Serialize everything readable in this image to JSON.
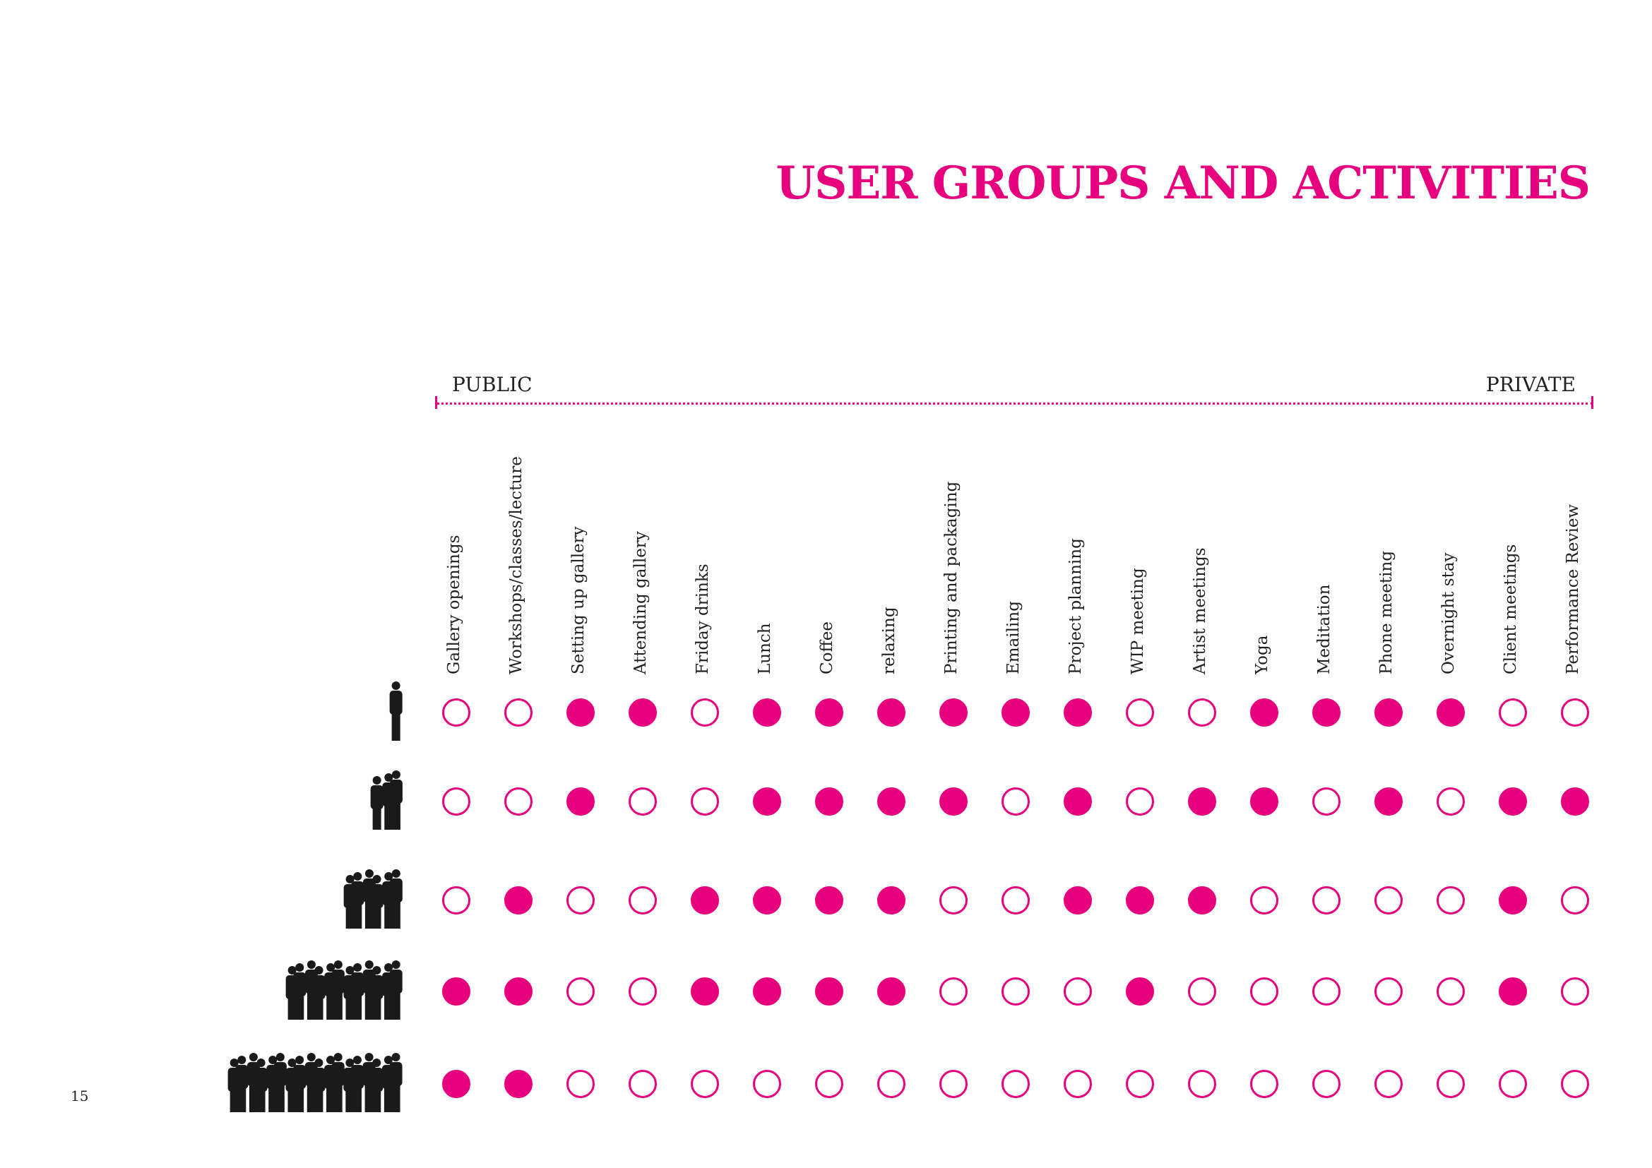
{
  "title": "USER GROUPS AND ACTIVITIES",
  "scale": {
    "left_label": "PUBLIC",
    "right_label": "PRIVATE"
  },
  "page_number": "15",
  "colors": {
    "accent": "#e6007e",
    "silhouette": "#1a1a1a"
  },
  "activities": [
    "Gallery openings",
    "Workshops/classes/lecture",
    "Setting up gallery",
    "Attending gallery",
    "Friday drinks",
    "Lunch",
    "Coffee",
    "relaxing",
    "Printing and packaging",
    "Emailing",
    "Project planning",
    "WIP meeting",
    "Artist meetings",
    "Yoga",
    "Meditation",
    "Phone meeting",
    "Overnight stay",
    "Client meetings",
    "Performance Review"
  ],
  "user_groups": [
    {
      "people_icon_count": 1,
      "activities": [
        0,
        0,
        1,
        1,
        0,
        1,
        1,
        1,
        1,
        1,
        1,
        0,
        0,
        1,
        1,
        1,
        1,
        0,
        0
      ]
    },
    {
      "people_icon_count": 3,
      "activities": [
        0,
        0,
        1,
        0,
        0,
        1,
        1,
        1,
        1,
        0,
        1,
        0,
        1,
        1,
        0,
        1,
        0,
        1,
        1
      ]
    },
    {
      "people_icon_count": 6,
      "activities": [
        0,
        1,
        0,
        0,
        1,
        1,
        1,
        1,
        0,
        0,
        1,
        1,
        1,
        0,
        0,
        0,
        0,
        1,
        0
      ]
    },
    {
      "people_icon_count": 12,
      "activities": [
        1,
        1,
        0,
        0,
        1,
        1,
        1,
        1,
        0,
        0,
        0,
        1,
        0,
        0,
        0,
        0,
        0,
        1,
        0
      ]
    },
    {
      "people_icon_count": 18,
      "activities": [
        1,
        1,
        0,
        0,
        0,
        0,
        0,
        0,
        0,
        0,
        0,
        0,
        0,
        0,
        0,
        0,
        0,
        0,
        0
      ]
    }
  ]
}
